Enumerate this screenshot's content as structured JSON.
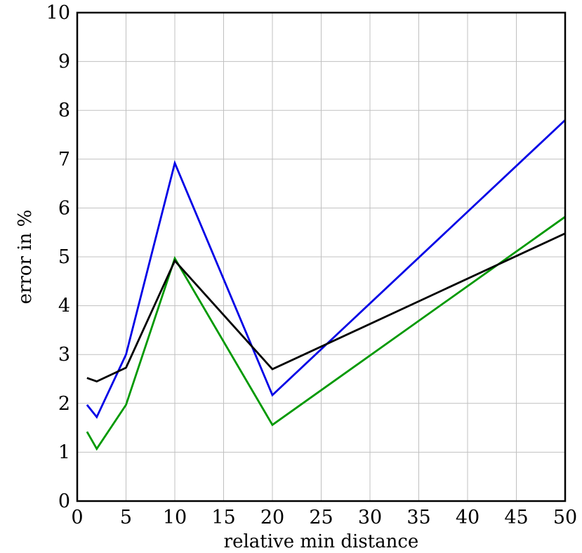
{
  "chart_data": {
    "type": "line",
    "title": "",
    "xlabel": "relative min distance",
    "ylabel": "error in %",
    "xlim": [
      0,
      50
    ],
    "ylim": [
      0,
      10
    ],
    "grid": true,
    "x_ticks": [
      0,
      5,
      10,
      15,
      20,
      25,
      30,
      35,
      40,
      45,
      50
    ],
    "y_ticks": [
      0,
      1,
      2,
      3,
      4,
      5,
      6,
      7,
      8,
      9,
      10
    ],
    "x": [
      1,
      2,
      5,
      10,
      20,
      50
    ],
    "series": [
      {
        "color": "#0000e6",
        "values": [
          1.97,
          1.72,
          3.0,
          6.92,
          2.17,
          7.8
        ]
      },
      {
        "color": "#009900",
        "values": [
          1.42,
          1.07,
          1.97,
          4.97,
          1.56,
          5.82
        ]
      },
      {
        "color": "#000000",
        "values": [
          2.52,
          2.45,
          2.73,
          4.92,
          2.7,
          5.48
        ]
      }
    ]
  }
}
